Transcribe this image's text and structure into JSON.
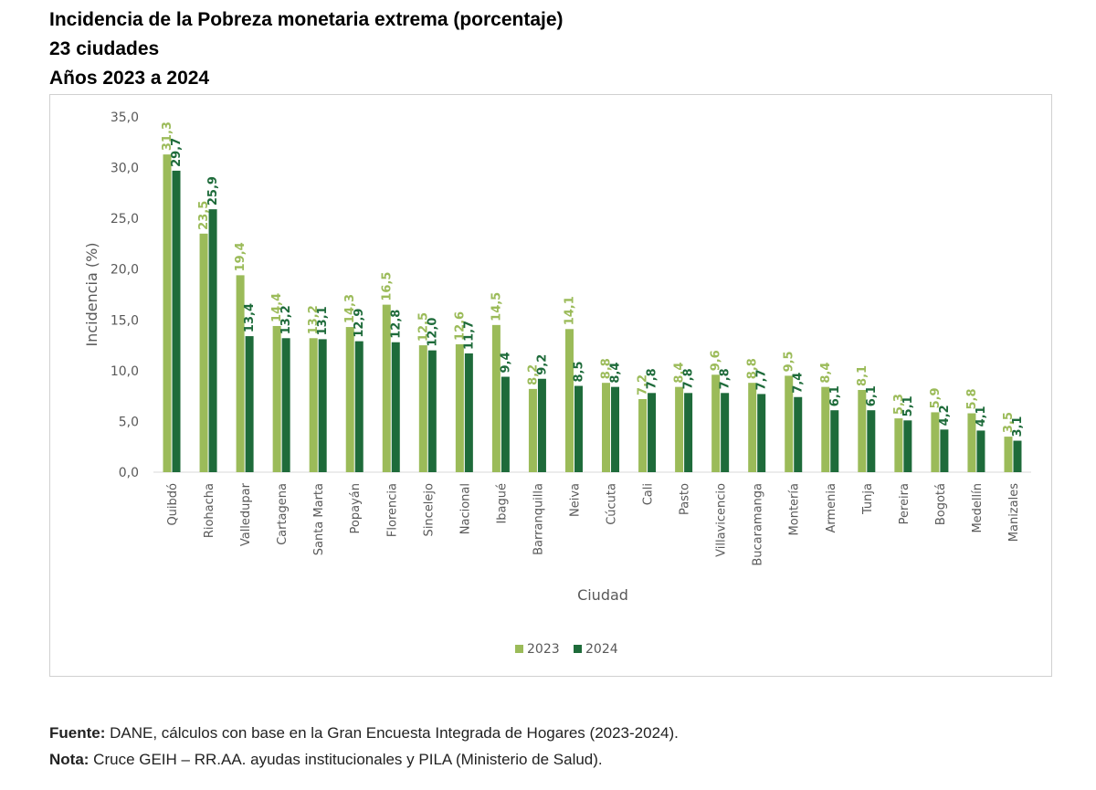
{
  "header": {
    "title_line1": "Incidencia de la Pobreza monetaria extrema (porcentaje)",
    "title_line2": "23 ciudades",
    "title_line3": "Años 2023 a 2024"
  },
  "notes": {
    "source_label": "Fuente:",
    "source_text": " DANE, cálculos con base en la Gran Encuesta Integrada de Hogares (2023-2024).",
    "note_label": "Nota:",
    "note_text": " Cruce GEIH – RR.AA. ayudas institucionales y PILA (Ministerio de Salud)."
  },
  "colors": {
    "series_2023": "#9bbb59",
    "series_2024": "#1e6b3a"
  },
  "chart_data": {
    "type": "bar",
    "title": "",
    "xlabel": "Ciudad",
    "ylabel": "Incidencia (%)",
    "ylim": [
      0,
      35
    ],
    "yticks": [
      0,
      5,
      10,
      15,
      20,
      25,
      30,
      35
    ],
    "ytick_labels": [
      "0,0",
      "5,0",
      "10,0",
      "15,0",
      "20,0",
      "25,0",
      "30,0",
      "35,0"
    ],
    "grid": false,
    "legend": "bottom",
    "categories": [
      "Quibdó",
      "Riohacha",
      "Valledupar",
      "Cartagena",
      "Santa Marta",
      "Popayán",
      "Florencia",
      "Sincelejo",
      "Nacional",
      "Ibagué",
      "Barranquilla",
      "Neiva",
      "Cúcuta",
      "Cali",
      "Pasto",
      "Villavicencio",
      "Bucaramanga",
      "Montería",
      "Armenia",
      "Tunja",
      "Pereira",
      "Bogotá",
      "Medellín",
      "Manizales"
    ],
    "series": [
      {
        "name": "2023",
        "values": [
          31.3,
          23.5,
          19.4,
          14.4,
          13.2,
          14.3,
          16.5,
          12.5,
          12.6,
          14.5,
          8.2,
          14.1,
          8.8,
          7.2,
          8.4,
          9.6,
          8.8,
          9.5,
          8.4,
          8.1,
          5.3,
          5.9,
          5.8,
          3.5
        ],
        "labels": [
          "31,3",
          "23,5",
          "19,4",
          "14,4",
          "13,2",
          "14,3",
          "16,5",
          "12,5",
          "12,6",
          "14,5",
          "8,2",
          "14,1",
          "8,8",
          "7,2",
          "8,4",
          "9,6",
          "8,8",
          "9,5",
          "8,4",
          "8,1",
          "5,3",
          "5,9",
          "5,8",
          "3,5"
        ]
      },
      {
        "name": "2024",
        "values": [
          29.7,
          25.9,
          13.4,
          13.2,
          13.1,
          12.9,
          12.8,
          12.0,
          11.7,
          9.4,
          9.2,
          8.5,
          8.4,
          7.8,
          7.8,
          7.8,
          7.7,
          7.4,
          6.1,
          6.1,
          5.1,
          4.2,
          4.1,
          3.1
        ],
        "labels": [
          "29,7",
          "25,9",
          "13,4",
          "13,2",
          "13,1",
          "12,9",
          "12,8",
          "12,0",
          "11,7",
          "9,4",
          "9,2",
          "8,5",
          "8,4",
          "7,8",
          "7,8",
          "7,8",
          "7,7",
          "7,4",
          "6,1",
          "6,1",
          "5,1",
          "4,2",
          "4,1",
          "3,1"
        ]
      }
    ]
  }
}
